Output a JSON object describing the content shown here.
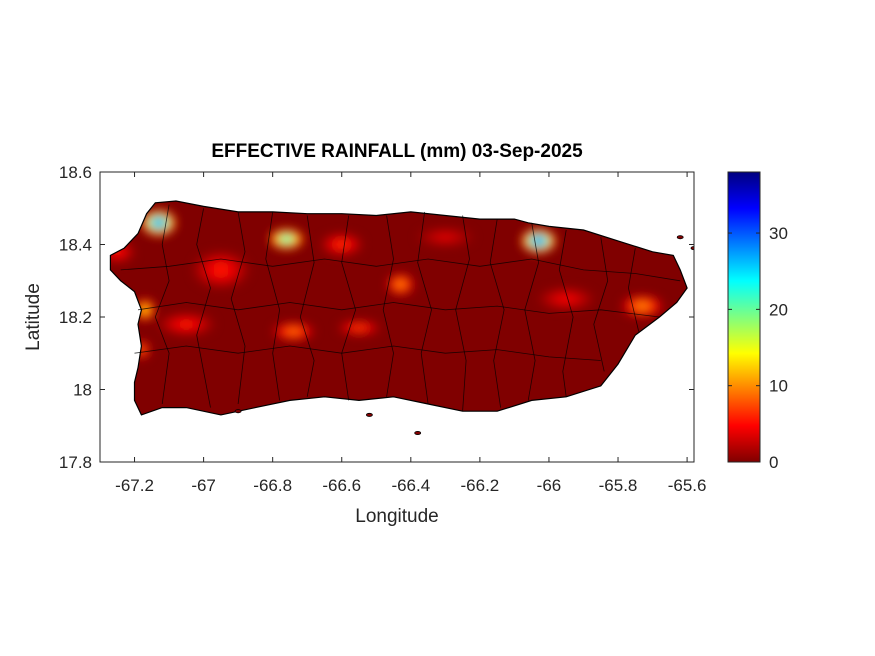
{
  "map": {
    "title": "EFFECTIVE RAINFALL (mm) 03-Sep-2025",
    "xlabel": "Longitude",
    "ylabel": "Latitude",
    "xlim": [
      -67.3,
      -65.58
    ],
    "ylim": [
      17.8,
      18.6
    ],
    "xticks": [
      {
        "value": -67.2,
        "label": "-67.2"
      },
      {
        "value": -67.0,
        "label": "-67"
      },
      {
        "value": -66.8,
        "label": "-66.8"
      },
      {
        "value": -66.6,
        "label": "-66.6"
      },
      {
        "value": -66.4,
        "label": "-66.4"
      },
      {
        "value": -66.2,
        "label": "-66.2"
      },
      {
        "value": -66.0,
        "label": "-66"
      },
      {
        "value": -65.8,
        "label": "-65.8"
      },
      {
        "value": -65.6,
        "label": "-65.6"
      }
    ],
    "yticks": [
      {
        "value": 17.8,
        "label": "17.8"
      },
      {
        "value": 18.0,
        "label": "18"
      },
      {
        "value": 18.2,
        "label": "18.2"
      },
      {
        "value": 18.4,
        "label": "18.4"
      },
      {
        "value": 18.6,
        "label": "18.6"
      }
    ],
    "colorbar": {
      "min": 0,
      "max": 38,
      "colormap": "jet",
      "ticks": [
        {
          "value": 0,
          "label": "0"
        },
        {
          "value": 10,
          "label": "10"
        },
        {
          "value": 20,
          "label": "20"
        },
        {
          "value": 30,
          "label": "30"
        }
      ]
    },
    "background_color": "#800000",
    "hotspots": [
      {
        "lon": -67.13,
        "lat": 18.46,
        "rlon": 0.05,
        "rlat": 0.035,
        "value": 34
      },
      {
        "lon": -66.76,
        "lat": 18.415,
        "rlon": 0.05,
        "rlat": 0.028,
        "value": 25
      },
      {
        "lon": -66.03,
        "lat": 18.41,
        "rlon": 0.05,
        "rlat": 0.033,
        "value": 36
      },
      {
        "lon": -67.17,
        "lat": 18.22,
        "rlon": 0.03,
        "rlat": 0.03,
        "value": 15
      },
      {
        "lon": -67.18,
        "lat": 18.11,
        "rlon": 0.025,
        "rlat": 0.025,
        "value": 10
      },
      {
        "lon": -66.43,
        "lat": 18.29,
        "rlon": 0.04,
        "rlat": 0.03,
        "value": 11
      },
      {
        "lon": -66.74,
        "lat": 18.16,
        "rlon": 0.06,
        "rlat": 0.025,
        "value": 10
      },
      {
        "lon": -66.55,
        "lat": 18.17,
        "rlon": 0.06,
        "rlat": 0.02,
        "value": 8
      },
      {
        "lon": -65.73,
        "lat": 18.23,
        "rlon": 0.06,
        "rlat": 0.03,
        "value": 11
      },
      {
        "lon": -66.6,
        "lat": 18.4,
        "rlon": 0.06,
        "rlat": 0.03,
        "value": 7
      },
      {
        "lon": -66.95,
        "lat": 18.33,
        "rlon": 0.08,
        "rlat": 0.05,
        "value": 6
      },
      {
        "lon": -67.05,
        "lat": 18.18,
        "rlon": 0.08,
        "rlat": 0.03,
        "value": 6
      },
      {
        "lon": -65.95,
        "lat": 18.25,
        "rlon": 0.08,
        "rlat": 0.03,
        "value": 5
      },
      {
        "lon": -66.3,
        "lat": 18.42,
        "rlon": 0.08,
        "rlat": 0.025,
        "value": 4
      },
      {
        "lon": -67.25,
        "lat": 18.38,
        "rlon": 0.05,
        "rlat": 0.03,
        "value": 6
      }
    ]
  }
}
